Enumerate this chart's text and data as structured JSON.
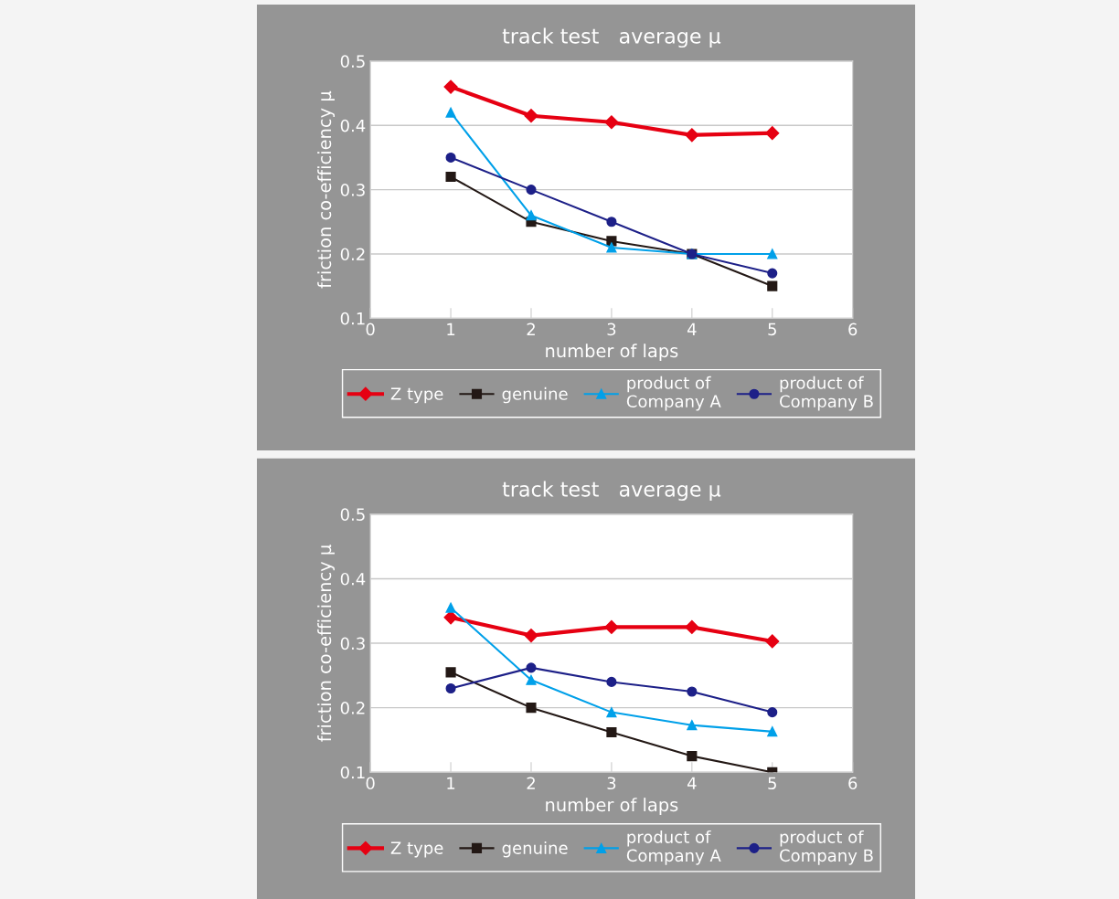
{
  "chart_data": [
    {
      "type": "line",
      "title": "track test   average μ",
      "xlabel": "number of laps",
      "ylabel": "friction co-efficiency μ",
      "x": [
        1,
        2,
        3,
        4,
        5
      ],
      "xlim": [
        0,
        6
      ],
      "xticks": [
        0,
        1,
        2,
        3,
        4,
        5,
        6
      ],
      "ylim": [
        0.1,
        0.5
      ],
      "yticks": [
        0.1,
        0.2,
        0.3,
        0.4,
        0.5
      ],
      "grid": "y",
      "legend": "bottom",
      "series": [
        {
          "name": "Z type",
          "color": "#e60012",
          "marker": "diamond",
          "values": [
            0.46,
            0.415,
            0.405,
            0.385,
            0.388
          ]
        },
        {
          "name": "genuine",
          "color": "#231815",
          "marker": "square",
          "values": [
            0.32,
            0.25,
            0.22,
            0.2,
            0.15
          ]
        },
        {
          "name": "product of\nCompany A",
          "color": "#00a0e9",
          "marker": "triangle",
          "values": [
            0.42,
            0.26,
            0.21,
            0.2,
            0.2
          ]
        },
        {
          "name": "product of\nCompany B",
          "color": "#1d2088",
          "marker": "circle",
          "values": [
            0.35,
            0.3,
            0.25,
            0.2,
            0.17
          ]
        }
      ]
    },
    {
      "type": "line",
      "title": "track test   average μ",
      "xlabel": "number of laps",
      "ylabel": "friction co-efficiency μ",
      "x": [
        1,
        2,
        3,
        4,
        5
      ],
      "xlim": [
        0,
        6
      ],
      "xticks": [
        0,
        1,
        2,
        3,
        4,
        5,
        6
      ],
      "ylim": [
        0.1,
        0.5
      ],
      "yticks": [
        0.1,
        0.2,
        0.3,
        0.4,
        0.5
      ],
      "grid": "y",
      "legend": "bottom",
      "series": [
        {
          "name": "Z type",
          "color": "#e60012",
          "marker": "diamond",
          "values": [
            0.34,
            0.312,
            0.325,
            0.325,
            0.303
          ]
        },
        {
          "name": "genuine",
          "color": "#231815",
          "marker": "square",
          "values": [
            0.255,
            0.2,
            0.162,
            0.125,
            0.1
          ]
        },
        {
          "name": "product of\nCompany A",
          "color": "#00a0e9",
          "marker": "triangle",
          "values": [
            0.355,
            0.243,
            0.193,
            0.173,
            0.163
          ]
        },
        {
          "name": "product of\nCompany B",
          "color": "#1d2088",
          "marker": "circle",
          "values": [
            0.23,
            0.262,
            0.24,
            0.225,
            0.193
          ]
        }
      ]
    }
  ]
}
